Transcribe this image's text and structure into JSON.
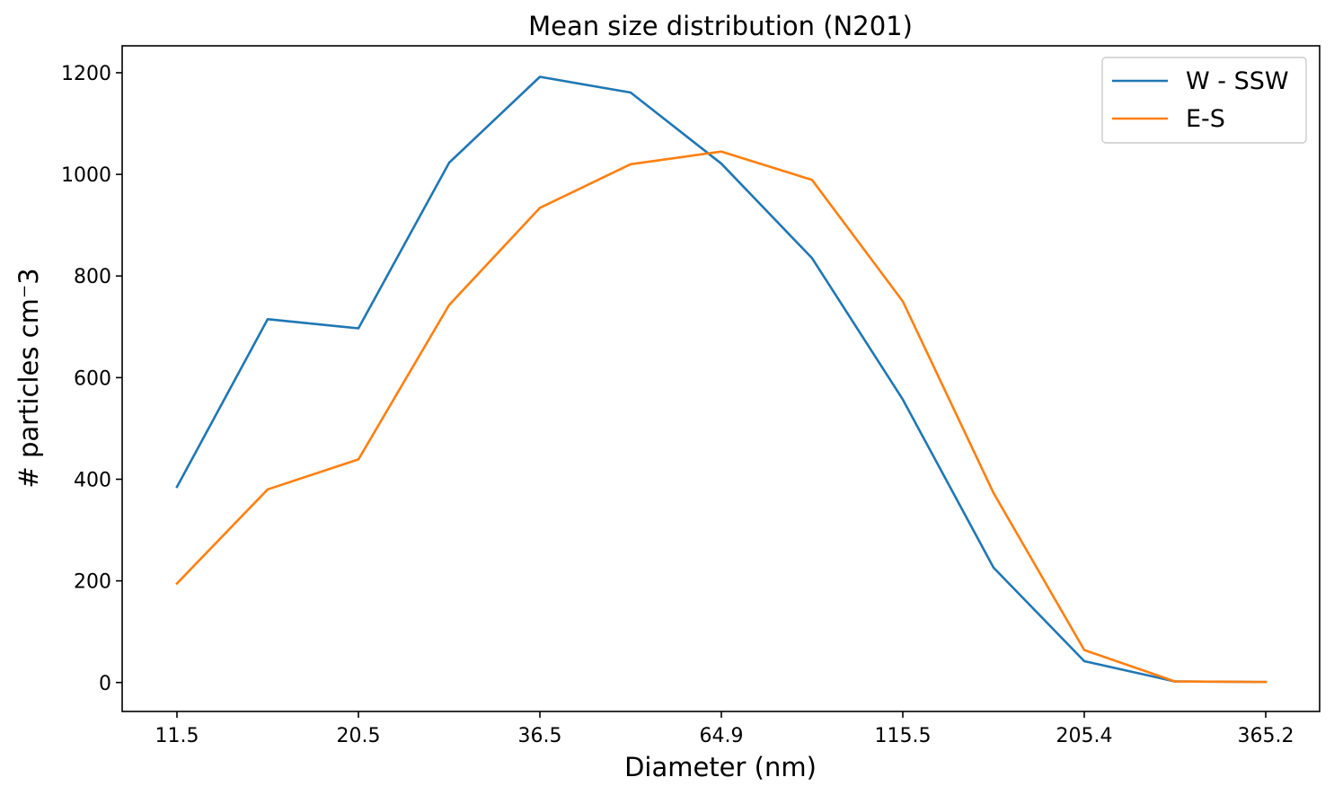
{
  "chart_data": {
    "type": "line",
    "title": "Mean size distribution (N201)",
    "xlabel": "Diameter (nm)",
    "ylabel": "# particles cm⁻3",
    "categories": [
      "11.5",
      "",
      "20.5",
      "",
      "36.5",
      "",
      "64.9",
      "",
      "115.5",
      "",
      "205.4",
      "",
      "365.2"
    ],
    "x_tick_labels": [
      "11.5",
      "20.5",
      "36.5",
      "64.9",
      "115.5",
      "205.4",
      "365.2"
    ],
    "y_ticks": [
      0,
      200,
      400,
      600,
      800,
      1000,
      1200
    ],
    "ylim": [
      -57,
      1253
    ],
    "grid": false,
    "legend_position": "top-right",
    "series": [
      {
        "name": "W - SSW",
        "color": "#1f77b4",
        "values": [
          385,
          715,
          697,
          1023,
          1192,
          1161,
          1021,
          835,
          557,
          226,
          42,
          2,
          1
        ]
      },
      {
        "name": "E-S",
        "color": "#ff7f0e",
        "values": [
          195,
          380,
          439,
          743,
          934,
          1020,
          1045,
          989,
          750,
          373,
          64,
          2,
          1
        ]
      }
    ]
  }
}
